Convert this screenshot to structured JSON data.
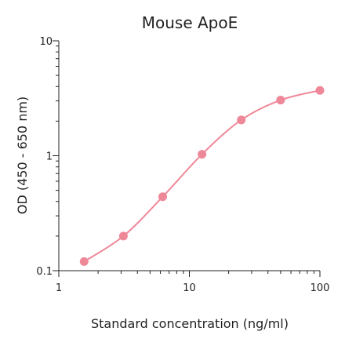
{
  "chart_data": {
    "type": "scatter",
    "title": "Mouse ApoE",
    "xlabel": "Standard concentration (ng/ml)",
    "ylabel": "OD (450 - 650 nm)",
    "xscale": "log",
    "yscale": "log",
    "xlim": [
      1,
      100
    ],
    "ylim": [
      0.1,
      10
    ],
    "x_ticks": [
      1,
      10,
      100
    ],
    "x_tick_labels": [
      "1",
      "10",
      "100"
    ],
    "y_ticks": [
      0.1,
      1,
      10
    ],
    "y_tick_labels": [
      "0.1",
      "1",
      "10"
    ],
    "grid": false,
    "colors": {
      "series": "#ee8899",
      "curve": "#ee8899",
      "axis": "#222222"
    },
    "series": [
      {
        "x": [
          1.5625,
          3.125,
          6.25,
          12.5,
          25,
          50,
          100
        ],
        "y": [
          0.12,
          0.2,
          0.44,
          1.03,
          2.05,
          3.05,
          3.7
        ]
      }
    ],
    "fit_curve": "4-parameter logistic"
  }
}
